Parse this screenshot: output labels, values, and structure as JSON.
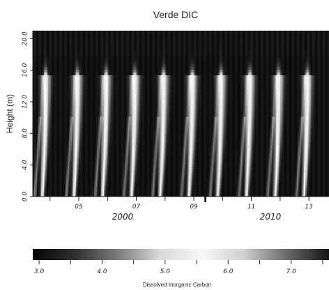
{
  "chart_data": {
    "type": "heatmap",
    "title": "Verde DIC",
    "ylabel": "Height (m)",
    "ylim": [
      0,
      21
    ],
    "y_ticks": [
      "0.0",
      "4.0",
      "8.0",
      "12.0",
      "16.0",
      "20.0"
    ],
    "y_tick_values": [
      0,
      4,
      8,
      12,
      16,
      20
    ],
    "x_tick_labels": [
      "05",
      "07",
      "09",
      "11",
      "13"
    ],
    "x_tick_years": [
      2005,
      2007,
      2009,
      2011,
      2013
    ],
    "xlim": [
      2003.4,
      2013.7
    ],
    "x_year_labels": [
      "2000",
      "2010"
    ],
    "season_peak_years": [
      2003.85,
      2004.95,
      2005.95,
      2006.95,
      2007.95,
      2008.95,
      2009.95,
      2010.95,
      2011.95,
      2012.95
    ],
    "peak_height_m": 15.5,
    "colorbar": {
      "title": "Dissolved Inorganic Carbon",
      "ticks": [
        "3.0",
        "4.0",
        "5.0",
        "6.0",
        "7.0"
      ],
      "tick_values": [
        3,
        4,
        5,
        6,
        7
      ],
      "range": [
        2.9,
        7.6
      ],
      "colors": [
        "#050505",
        "#303030",
        "#7a7a7a",
        "#d8d8d8",
        "#f8f8f8",
        "#cfcfcf",
        "#6a6a6a",
        "#151515"
      ]
    }
  }
}
